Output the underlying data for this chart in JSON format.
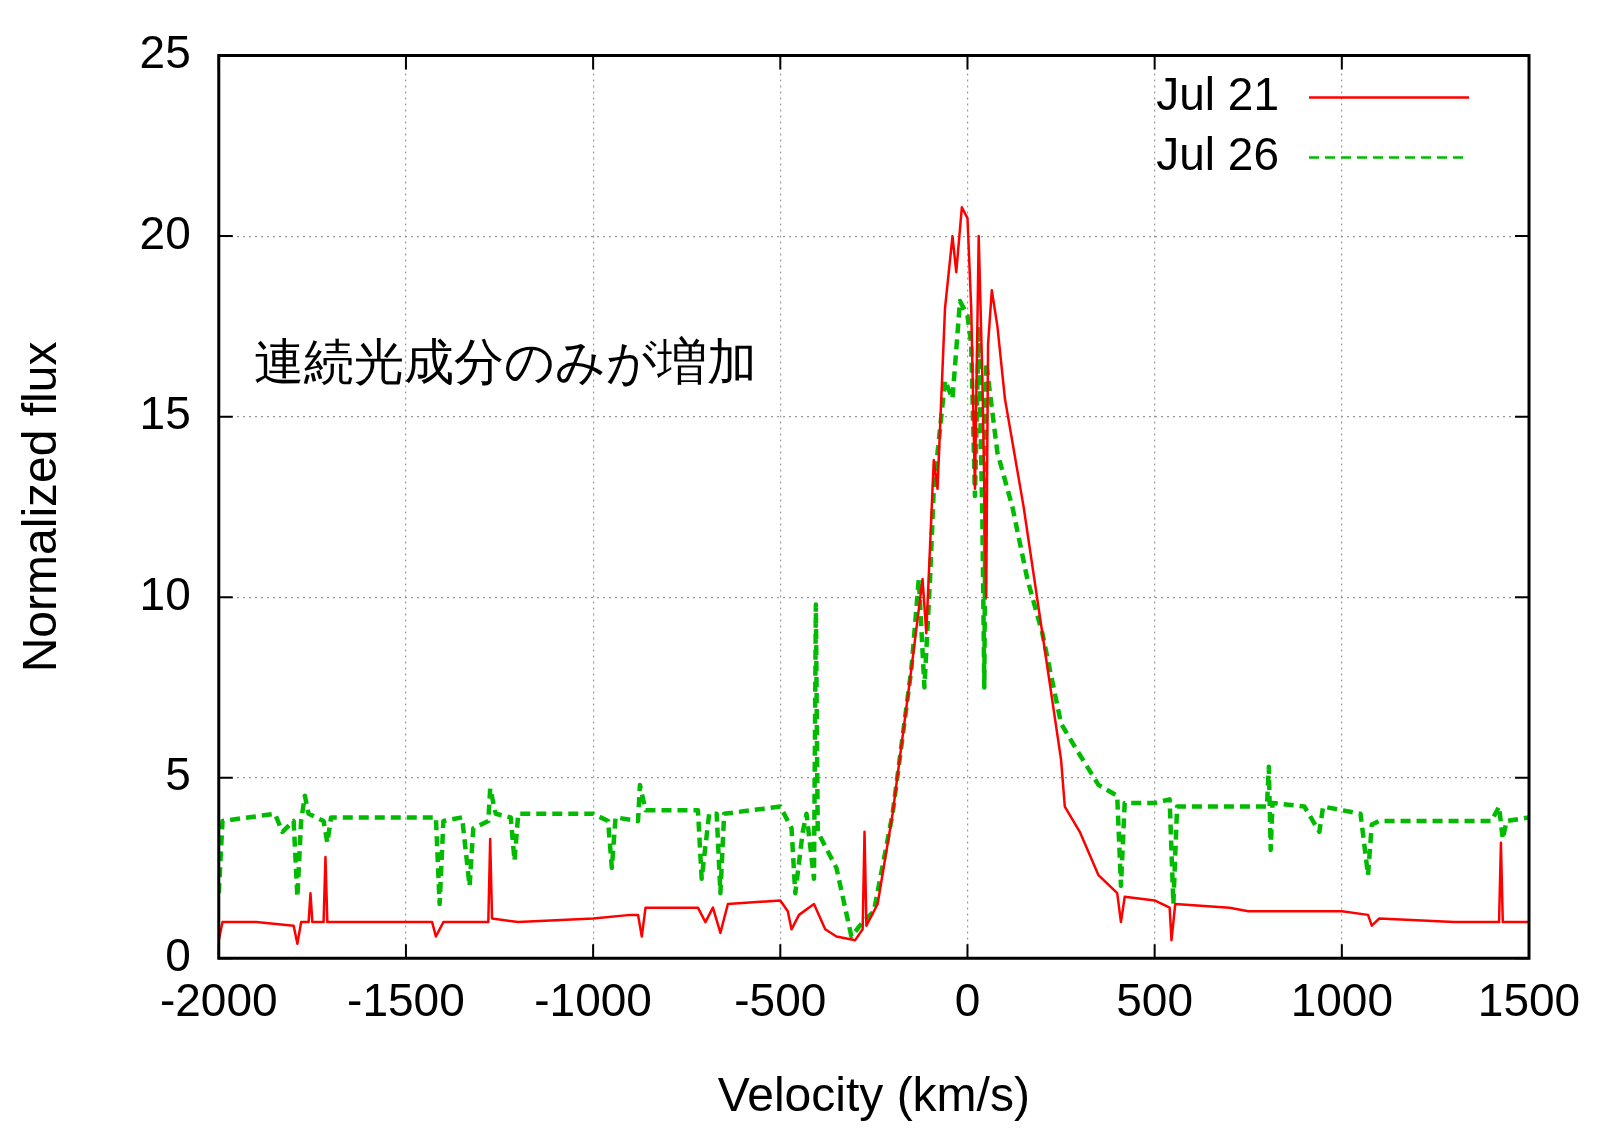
{
  "chart_data": {
    "type": "line",
    "xlabel": "Velocity (km/s)",
    "ylabel": "Normalized flux",
    "annotations": [
      "連続光成分のみが増加"
    ],
    "xlim": [
      -2000,
      1500
    ],
    "xticks": [
      -2000,
      -1500,
      -1000,
      -500,
      0,
      500,
      1000,
      1500
    ],
    "ylim": [
      0,
      25
    ],
    "yticks": [
      0,
      5,
      10,
      15,
      20,
      25
    ],
    "grid": true,
    "legend": "top right",
    "marker": "none",
    "series": [
      {
        "name": "Jul 21",
        "color": "#ff0000",
        "line_style": "solid",
        "x": [
          -2000,
          -1990,
          -1900,
          -1800,
          -1790,
          -1780,
          -1760,
          -1755,
          -1750,
          -1720,
          -1715,
          -1710,
          -1500,
          -1430,
          -1420,
          -1400,
          -1280,
          -1275,
          -1270,
          -1200,
          -1000,
          -900,
          -880,
          -870,
          -860,
          -720,
          -700,
          -680,
          -660,
          -640,
          -500,
          -480,
          -470,
          -450,
          -410,
          -380,
          -350,
          -300,
          -280,
          -275,
          -270,
          -240,
          -200,
          -150,
          -120,
          -110,
          -90,
          -80,
          -60,
          -40,
          -30,
          -15,
          0,
          10,
          20,
          30,
          40,
          50,
          55,
          65,
          80,
          100,
          150,
          200,
          250,
          260,
          300,
          350,
          400,
          410,
          420,
          500,
          540,
          545,
          555,
          700,
          750,
          900,
          1000,
          1070,
          1080,
          1100,
          1300,
          1420,
          1425,
          1430,
          1500
        ],
        "values": [
          0.5,
          1.0,
          1.0,
          0.9,
          0.4,
          1.0,
          1.0,
          1.8,
          1.0,
          1.0,
          2.8,
          1.0,
          1.0,
          1.0,
          0.6,
          1.0,
          1.0,
          3.3,
          1.1,
          1.0,
          1.1,
          1.2,
          1.2,
          0.6,
          1.4,
          1.4,
          1.0,
          1.4,
          0.7,
          1.5,
          1.6,
          1.3,
          0.8,
          1.2,
          1.5,
          0.8,
          0.6,
          0.5,
          0.8,
          3.5,
          0.9,
          1.5,
          4,
          8,
          10.5,
          9,
          13.8,
          13,
          18,
          20,
          19,
          20.8,
          20.5,
          18,
          13,
          20,
          16,
          10,
          17,
          18.5,
          17.5,
          15.5,
          12.5,
          9,
          5.5,
          4.2,
          3.5,
          2.3,
          1.8,
          1.0,
          1.7,
          1.6,
          1.4,
          0.5,
          1.5,
          1.4,
          1.3,
          1.3,
          1.3,
          1.2,
          0.9,
          1.1,
          1.0,
          1.0,
          3.2,
          1.0,
          1.0
        ]
      },
      {
        "name": "Jul 26",
        "color": "#00bb00",
        "line_style": "dashed",
        "x": [
          -2000,
          -1990,
          -1850,
          -1830,
          -1800,
          -1790,
          -1780,
          -1770,
          -1760,
          -1720,
          -1710,
          -1700,
          -1420,
          -1410,
          -1400,
          -1350,
          -1330,
          -1320,
          -1280,
          -1275,
          -1260,
          -1220,
          -1210,
          -1200,
          -1000,
          -960,
          -950,
          -940,
          -880,
          -875,
          -860,
          -720,
          -710,
          -690,
          -670,
          -660,
          -650,
          -500,
          -470,
          -460,
          -440,
          -430,
          -410,
          -405,
          -400,
          -350,
          -310,
          -280,
          -250,
          -200,
          -150,
          -130,
          -115,
          -100,
          -90,
          -60,
          -40,
          -20,
          0,
          10,
          20,
          30,
          40,
          45,
          50,
          80,
          120,
          160,
          200,
          250,
          290,
          350,
          400,
          410,
          420,
          500,
          540,
          550,
          560,
          700,
          800,
          805,
          810,
          815,
          900,
          940,
          950,
          1050,
          1070,
          1080,
          1100,
          1400,
          1420,
          1430,
          1440,
          1500
        ],
        "values": [
          1.8,
          3.8,
          4.0,
          3.5,
          3.8,
          1.7,
          3.8,
          4.5,
          4.0,
          3.8,
          3.2,
          3.9,
          3.9,
          1.5,
          3.8,
          3.9,
          2.0,
          3.6,
          3.8,
          4.7,
          4.0,
          3.9,
          2.7,
          4.0,
          4.0,
          3.8,
          2.5,
          3.9,
          3.8,
          4.8,
          4.1,
          4.1,
          2.2,
          4.0,
          4.0,
          1.8,
          4.0,
          4.2,
          3.6,
          1.8,
          3.5,
          4.0,
          2.2,
          9.8,
          3.5,
          2.5,
          0.6,
          1.0,
          1.3,
          4,
          8,
          10.5,
          7.5,
          10.5,
          13,
          16,
          15.5,
          18.2,
          17.8,
          17,
          12.8,
          17.5,
          12,
          7.5,
          16.5,
          14,
          12.5,
          10.5,
          9,
          6.5,
          5.8,
          4.8,
          4.5,
          2.0,
          4.3,
          4.3,
          4.4,
          1.5,
          4.2,
          4.2,
          4.2,
          5.3,
          3.0,
          4.3,
          4.2,
          3.5,
          4.2,
          4.0,
          2.3,
          3.7,
          3.8,
          3.8,
          4.2,
          3.3,
          3.8,
          3.9
        ]
      }
    ]
  }
}
